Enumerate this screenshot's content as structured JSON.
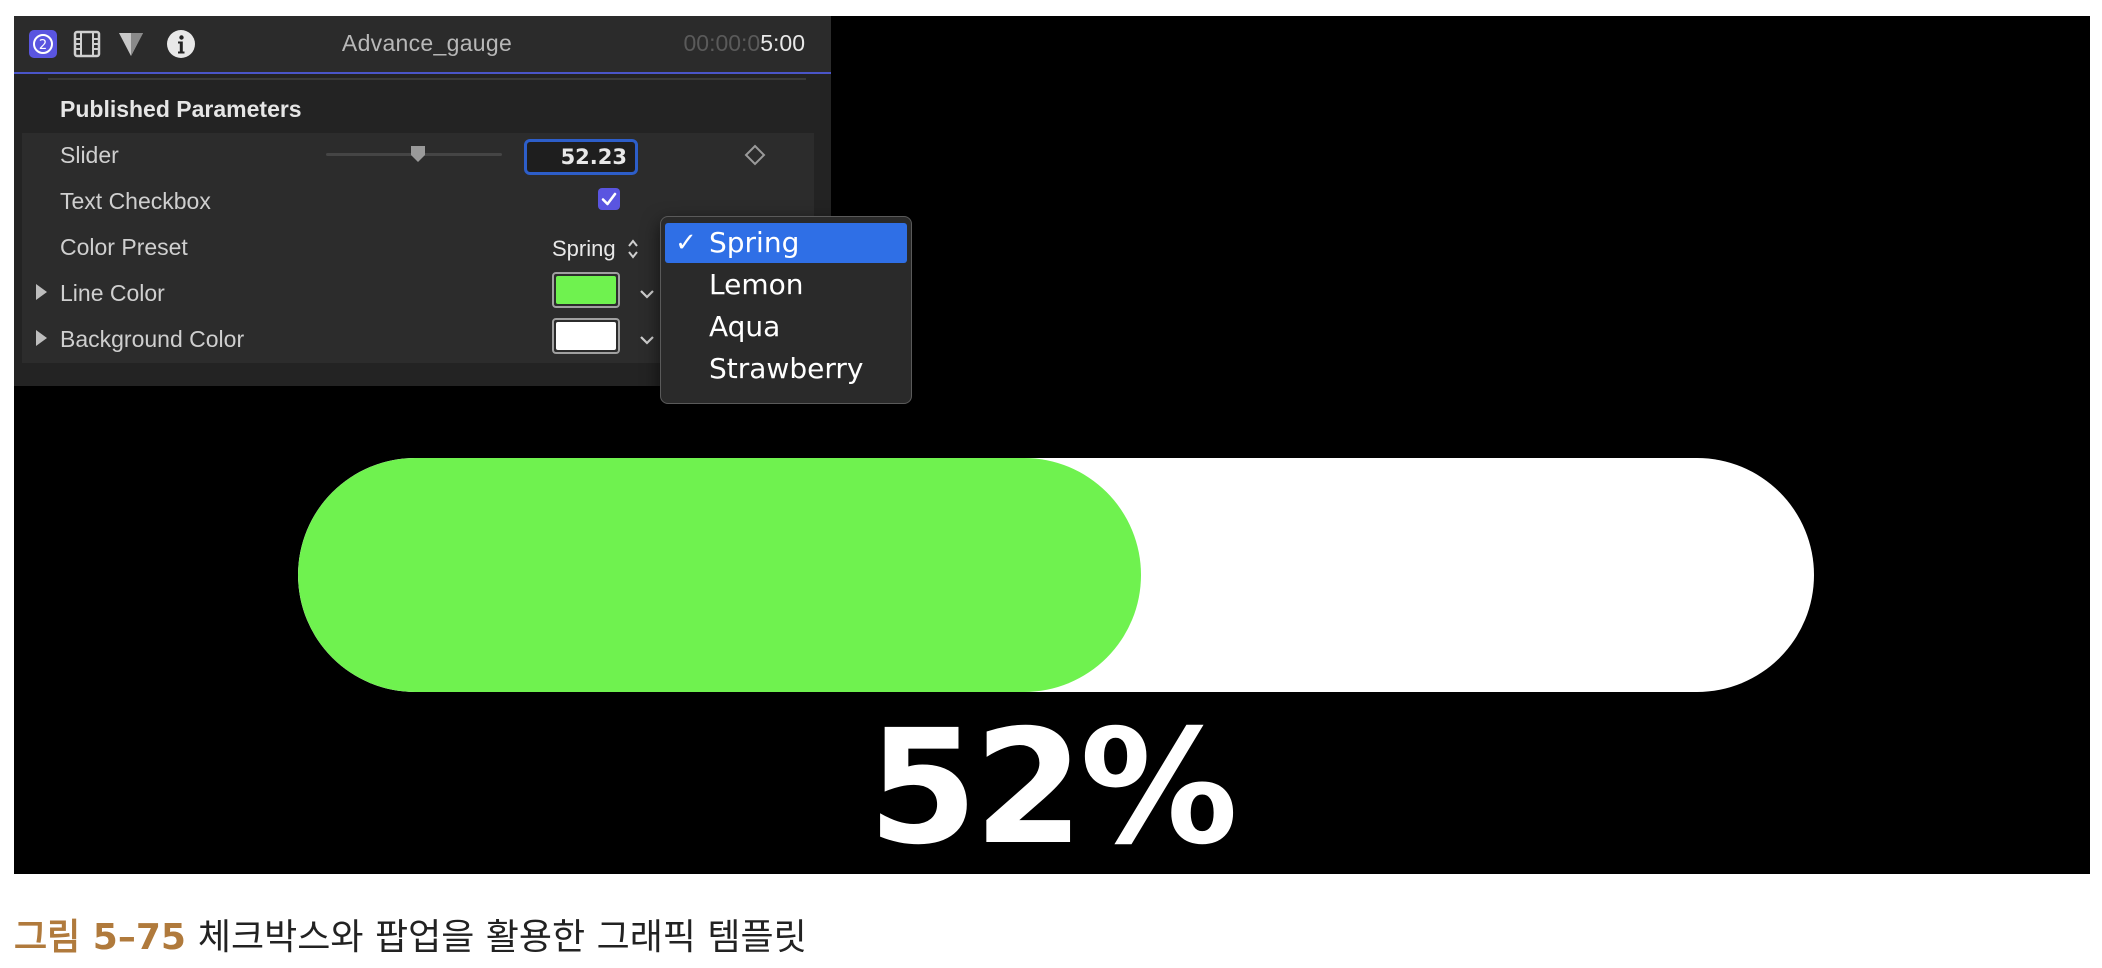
{
  "panel": {
    "title": "Advance_gauge",
    "timecode_dim": "00:00:0",
    "timecode_main": "5:00",
    "header_icons": [
      "rig-badge-icon",
      "film-icon",
      "filter-icon",
      "info-icon"
    ],
    "section_title": "Published Parameters",
    "rows": {
      "slider": {
        "label": "Slider",
        "value": "52.23",
        "level_fraction": 0.5223
      },
      "text_checkbox": {
        "label": "Text Checkbox",
        "checked": true
      },
      "color_preset": {
        "label": "Color Preset",
        "value": "Spring"
      },
      "line_color": {
        "label": "Line Color",
        "color": "#6ff24f"
      },
      "background_color": {
        "label": "Background Color",
        "color": "#ffffff"
      }
    }
  },
  "menu": {
    "items": [
      {
        "label": "Spring",
        "checked": true
      },
      {
        "label": "Lemon",
        "checked": false
      },
      {
        "label": "Aqua",
        "checked": false
      },
      {
        "label": "Strawberry",
        "checked": false
      }
    ],
    "check_glyph": "✓"
  },
  "gauge": {
    "percent_text": "52%",
    "fill_fraction": 0.5223,
    "fill_color": "#6ff24f",
    "track_color": "#ffffff"
  },
  "caption": {
    "figure_label": "그림 5–75",
    "text": "체크박스와 팝업을 활용한 그래픽 템플릿"
  },
  "colors": {
    "accent_blue": "#2f6fe6",
    "checkbox_purple": "#5a55e0",
    "caption_brown": "#b07a3c"
  }
}
